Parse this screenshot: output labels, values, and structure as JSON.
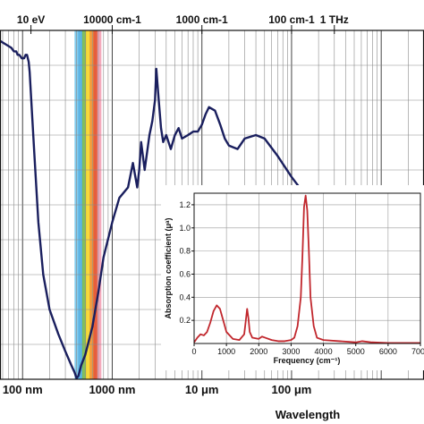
{
  "chart_data": [
    {
      "type": "line",
      "xlabel": "Wavelength",
      "x_scale": "log",
      "x_unit": "nm",
      "xlim": [
        56,
        3000000
      ],
      "ylim": [
        0,
        1
      ],
      "y_scale_note": "unlabeled relative scale",
      "grid": true,
      "top_ticks": [
        {
          "label": "10 eV",
          "wavelength_nm": 124
        },
        {
          "label": "10000 cm-1",
          "wavelength_nm": 1000
        },
        {
          "label": "1000 cm-1",
          "wavelength_nm": 10000
        },
        {
          "label": "100 cm-1",
          "wavelength_nm": 100000
        },
        {
          "label": "1 THz",
          "wavelength_nm": 300000
        }
      ],
      "bottom_ticks": [
        {
          "label": "100 nm",
          "wavelength_nm": 100
        },
        {
          "label": "1000 nm",
          "wavelength_nm": 1000
        },
        {
          "label": "10 μm",
          "wavelength_nm": 10000
        },
        {
          "label": "100 μm",
          "wavelength_nm": 100000
        }
      ],
      "visible_band": {
        "from_nm": 380,
        "to_nm": 750,
        "colors": [
          "#6fc3ea",
          "#41a7e0",
          "#6db33f",
          "#f5d11b",
          "#f08a1d",
          "#e2421b",
          "#f29bb0"
        ]
      },
      "series": [
        {
          "color": "#1a1f5e",
          "x": [
            56,
            65,
            75,
            80,
            85,
            88,
            92,
            98,
            104,
            108,
            112,
            117,
            120,
            125,
            135,
            150,
            170,
            200,
            250,
            300,
            350,
            380,
            400,
            420,
            450,
            500,
            600,
            700,
            800,
            1000,
            1200,
            1500,
            1700,
            1900,
            2000,
            2100,
            2300,
            2600,
            2800,
            3000,
            3100,
            3300,
            3500,
            3700,
            4000,
            4500,
            5000,
            5500,
            6000,
            7000,
            8000,
            9000,
            10000,
            11000,
            12000,
            14000,
            16000,
            18000,
            20000,
            25000,
            30000,
            40000,
            50000,
            70000,
            100000,
            150000,
            200000,
            250000,
            300000,
            400000,
            500000,
            700000,
            1000000,
            1500000,
            2000000,
            3000000
          ],
          "y": [
            0.97,
            0.96,
            0.95,
            0.94,
            0.94,
            0.93,
            0.93,
            0.92,
            0.92,
            0.93,
            0.93,
            0.91,
            0.88,
            0.8,
            0.65,
            0.45,
            0.3,
            0.2,
            0.13,
            0.08,
            0.04,
            0.02,
            0.003,
            0.01,
            0.04,
            0.07,
            0.15,
            0.25,
            0.35,
            0.45,
            0.52,
            0.55,
            0.62,
            0.55,
            0.6,
            0.68,
            0.6,
            0.7,
            0.74,
            0.8,
            0.89,
            0.8,
            0.72,
            0.68,
            0.7,
            0.66,
            0.7,
            0.72,
            0.69,
            0.7,
            0.71,
            0.71,
            0.73,
            0.76,
            0.78,
            0.77,
            0.73,
            0.69,
            0.67,
            0.66,
            0.69,
            0.7,
            0.69,
            0.64,
            0.58,
            0.52,
            0.45,
            0.4,
            0.34,
            0.3,
            0.26,
            0.22,
            0.2,
            0.18,
            0.17,
            0.16
          ]
        }
      ]
    },
    {
      "type": "line",
      "xlabel": "Frequency (cm⁻¹)",
      "ylabel": "Absorption coefficient (μᵃ)",
      "xlim": [
        0,
        7000
      ],
      "ylim": [
        0,
        1.3
      ],
      "grid": true,
      "xticks": [
        0,
        1000,
        2000,
        3000,
        4000,
        5000,
        6000,
        7000
      ],
      "xtick_labels": [
        "0",
        "1000",
        "2000",
        "3000",
        "4000",
        "5000",
        "6000",
        "7000"
      ],
      "yticks": [
        0.2,
        0.4,
        0.6,
        0.8,
        1.0,
        1.2
      ],
      "ytick_labels": [
        "0.2",
        "0.4",
        "0.6",
        "0.8",
        "1.0",
        "1.2"
      ],
      "series": [
        {
          "color": "#c1272d",
          "x": [
            0,
            100,
            200,
            300,
            400,
            500,
            600,
            700,
            800,
            900,
            1000,
            1200,
            1400,
            1550,
            1600,
            1640,
            1680,
            1720,
            1800,
            2000,
            2100,
            2200,
            2400,
            2600,
            2800,
            3000,
            3100,
            3200,
            3300,
            3350,
            3400,
            3450,
            3500,
            3550,
            3600,
            3700,
            3800,
            4000,
            4500,
            5000,
            5200,
            5500,
            6000,
            6500,
            7000
          ],
          "y": [
            0.01,
            0.05,
            0.08,
            0.07,
            0.1,
            0.18,
            0.28,
            0.33,
            0.3,
            0.2,
            0.1,
            0.04,
            0.03,
            0.08,
            0.2,
            0.3,
            0.22,
            0.1,
            0.05,
            0.04,
            0.06,
            0.05,
            0.03,
            0.02,
            0.02,
            0.03,
            0.05,
            0.15,
            0.4,
            0.75,
            1.18,
            1.28,
            1.15,
            0.8,
            0.4,
            0.15,
            0.05,
            0.03,
            0.02,
            0.01,
            0.02,
            0.01,
            0.005,
            0.005,
            0.005
          ]
        }
      ]
    }
  ]
}
